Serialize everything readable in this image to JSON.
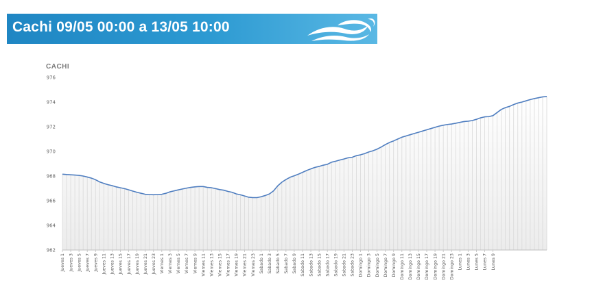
{
  "header": {
    "title": "Cachi  09/05 00:00 a 13/05 10:00",
    "logo": "wave-logo-icon",
    "colors": {
      "banner": "#2a94cf",
      "logo": "#ffffff"
    }
  },
  "chart_data": {
    "type": "area",
    "title": "CACHI",
    "xlabel": "",
    "ylabel": "",
    "ylim": [
      962,
      976
    ],
    "yticks": [
      "976",
      "974",
      "972",
      "970",
      "968",
      "966",
      "964",
      "962"
    ],
    "grid": false,
    "legend": "none",
    "colors": {
      "line": "#4f7ec0",
      "fill": "#d9d9d9",
      "axis": "#bfbfbf"
    },
    "xtick_labels": [
      "Jueves 1",
      "Jueves 3",
      "Jueves 5",
      "Jueves 7",
      "Jueves 9",
      "Jueves 11",
      "Jueves 13",
      "Jueves 15",
      "Jueves 17",
      "Jueves 19",
      "Jueves 21",
      "Jueves 23",
      "Viernes 1",
      "Viernes 3",
      "Viernes 5",
      "Viernes 7",
      "Viernes 9",
      "Viernes 11",
      "Viernes 13",
      "Viernes 15",
      "Viernes 17",
      "Viernes 19",
      "Viernes 21",
      "Viernes 23",
      "Sabado 1",
      "Sabado 3",
      "Sabado 5",
      "Sabado 7",
      "Sabado 9",
      "Sabado 11",
      "Sabado 13",
      "Sabado 15",
      "Sabado 17",
      "Sabado 19",
      "Sabado 21",
      "Sabado 23",
      "Domingo 1",
      "Domingo 3",
      "Domingo 5",
      "Domingo 7",
      "Domingo 9",
      "Domingo 11",
      "Domingo 13",
      "Domingo 15",
      "Domingo 17",
      "Domingo 19",
      "Domingo 21",
      "Domingo 23",
      "Lunes 1",
      "Lunes 3",
      "Lunes 5",
      "Lunes 7",
      "Lunes 9"
    ],
    "values": [
      968.15,
      968.12,
      968.1,
      968.08,
      968.05,
      968.0,
      967.92,
      967.83,
      967.7,
      967.52,
      967.4,
      967.3,
      967.22,
      967.12,
      967.05,
      966.98,
      966.88,
      966.78,
      966.68,
      966.6,
      966.52,
      966.5,
      966.48,
      966.5,
      966.52,
      966.6,
      966.72,
      966.8,
      966.88,
      966.95,
      967.02,
      967.08,
      967.12,
      967.15,
      967.15,
      967.08,
      967.05,
      966.98,
      966.9,
      966.85,
      966.75,
      966.68,
      966.55,
      966.48,
      966.38,
      966.28,
      966.25,
      966.25,
      966.32,
      966.42,
      966.55,
      966.8,
      967.2,
      967.5,
      967.72,
      967.9,
      968.02,
      968.15,
      968.3,
      968.45,
      968.58,
      968.7,
      968.78,
      968.88,
      968.95,
      969.12,
      969.2,
      969.3,
      969.38,
      969.48,
      969.52,
      969.65,
      969.72,
      969.82,
      969.95,
      970.05,
      970.18,
      970.35,
      970.55,
      970.72,
      970.85,
      971.0,
      971.15,
      971.25,
      971.35,
      971.45,
      971.55,
      971.65,
      971.75,
      971.85,
      971.95,
      972.05,
      972.12,
      972.18,
      972.22,
      972.28,
      972.35,
      972.42,
      972.45,
      972.5,
      972.6,
      972.72,
      972.8,
      972.82,
      972.9,
      973.15,
      973.4,
      973.55,
      973.65,
      973.8,
      973.92,
      974.0,
      974.1,
      974.2,
      974.28,
      974.35,
      974.42,
      974.45
    ]
  }
}
